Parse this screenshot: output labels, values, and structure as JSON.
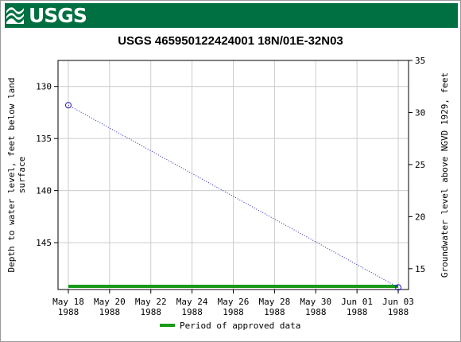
{
  "header": {
    "agency": "USGS",
    "title": "USGS 465950122424001 18N/01E-32N03"
  },
  "chart_data": {
    "type": "line",
    "x_ticks": [
      {
        "line1": "May 18",
        "line2": "1988",
        "day": 0
      },
      {
        "line1": "May 20",
        "line2": "1988",
        "day": 2
      },
      {
        "line1": "May 22",
        "line2": "1988",
        "day": 4
      },
      {
        "line1": "May 24",
        "line2": "1988",
        "day": 6
      },
      {
        "line1": "May 26",
        "line2": "1988",
        "day": 8
      },
      {
        "line1": "May 28",
        "line2": "1988",
        "day": 10
      },
      {
        "line1": "May 30",
        "line2": "1988",
        "day": 12
      },
      {
        "line1": "Jun 01",
        "line2": "1988",
        "day": 14
      },
      {
        "line1": "Jun 03",
        "line2": "1988",
        "day": 16
      }
    ],
    "xlim_days": [
      -0.5,
      16.5
    ],
    "ylabel_left": "Depth to water level, feet below land surface",
    "ylabel_left_lines": [
      "Depth to water level, feet below land",
      "surface"
    ],
    "ylabel_right": "Groundwater level above NGVD 1929, feet",
    "ylim_left": [
      127.5,
      149.5
    ],
    "y_ticks_left": [
      130,
      135,
      140,
      145
    ],
    "ylim_right": [
      35,
      13
    ],
    "y_ticks_right": [
      35,
      30,
      25,
      20,
      15
    ],
    "series": [
      {
        "points": [
          {
            "day": 0,
            "depth": 131.8
          },
          {
            "day": 16,
            "depth": 149.3
          }
        ],
        "color": "#1f1fbf",
        "style": "dotted",
        "marker": "circle"
      }
    ],
    "approved_period": {
      "start_day": 0,
      "end_day": 16,
      "color": "#1a9a1a"
    },
    "legend": {
      "label": "Period of approved data",
      "placement": "bottom-center"
    },
    "grid": true
  },
  "colors": {
    "banner": "#006f41",
    "grid": "#cccccc"
  }
}
